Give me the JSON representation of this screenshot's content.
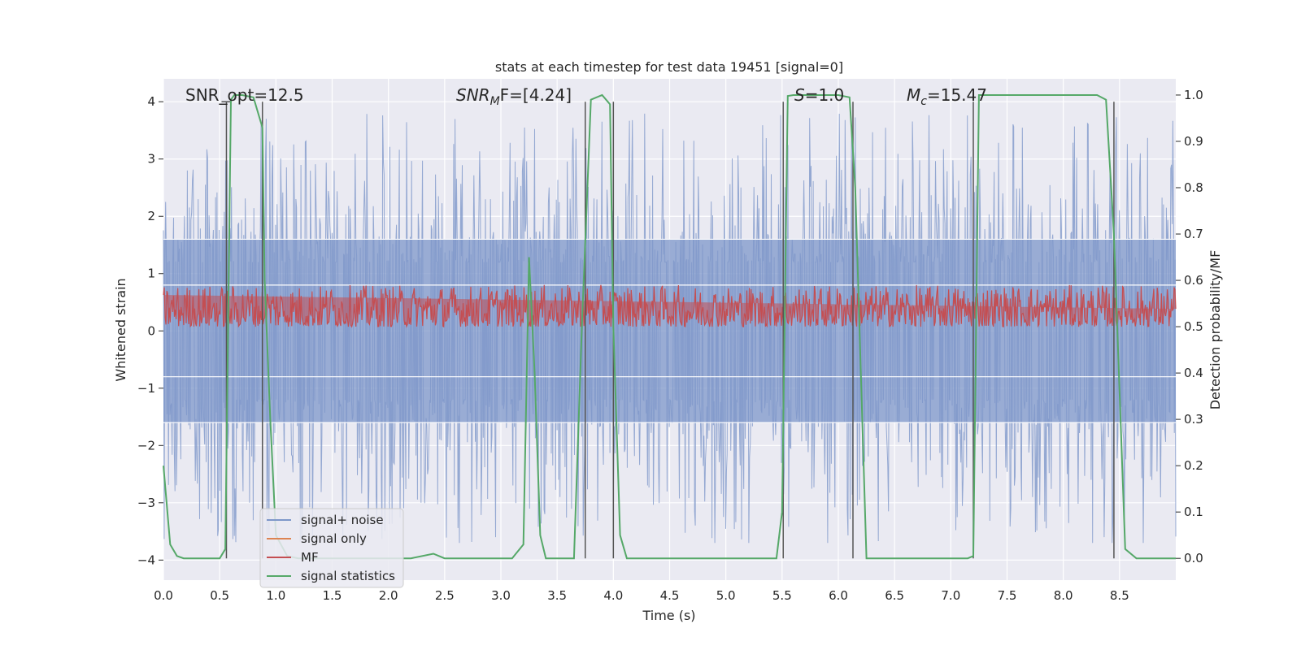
{
  "chart_data": {
    "type": "line",
    "title": "stats at each timestep for test data 19451 [signal=0]",
    "xlabel": "Time (s)",
    "ylabel": "Whitened strain",
    "y2label": "Detection probability/MF",
    "xlim": [
      0.0,
      9.0
    ],
    "ylim": [
      -4.35,
      4.4
    ],
    "y2lim": [
      -0.047,
      1.035
    ],
    "x_ticks": [
      "0.0",
      "0.5",
      "1.0",
      "1.5",
      "2.0",
      "2.5",
      "3.0",
      "3.5",
      "4.0",
      "4.5",
      "5.0",
      "5.5",
      "6.0",
      "6.5",
      "7.0",
      "7.5",
      "8.0",
      "8.5"
    ],
    "y_ticks": [
      "4",
      "3",
      "2",
      "1",
      "0",
      "−1",
      "−2",
      "−3",
      "−4"
    ],
    "y2_ticks": [
      "1.0",
      "0.9",
      "0.8",
      "0.7",
      "0.6",
      "0.5",
      "0.4",
      "0.3",
      "0.2",
      "0.1",
      "0.0"
    ],
    "grid": true,
    "legend_position": "lower-left",
    "annotations": {
      "snr_opt": "SNR_opt=12.5",
      "snr_mf_prefix": "SNR",
      "snr_mf_sub": "M",
      "snr_mf_suffix": "F=[4.24]",
      "s_italic": "S",
      "s_value": "=1.0",
      "mc_italic": "M",
      "mc_sub": "c",
      "mc_value": "=15.47"
    },
    "series": [
      {
        "name": "signal+ noise",
        "color": "#7e97c9",
        "envelope_positive_typical": 1.6,
        "envelope_negative_typical": -1.6,
        "peak_max": 4.0,
        "peak_min": -3.7
      },
      {
        "name": "signal only",
        "color": "#dd8452",
        "values": []
      },
      {
        "name": "MF",
        "color": "#c44e52",
        "axis": "right",
        "baseline": 0.5,
        "range": [
          0.5,
          0.6
        ]
      },
      {
        "name": "signal statistics",
        "color": "#55a868",
        "axis": "right",
        "x": [
          0.0,
          0.06,
          0.12,
          0.18,
          0.5,
          0.55,
          0.6,
          0.63,
          0.7,
          0.8,
          0.88,
          0.9,
          0.95,
          1.0,
          1.1,
          1.2,
          1.5,
          2.0,
          2.2,
          2.4,
          2.5,
          3.0,
          3.1,
          3.2,
          3.25,
          3.3,
          3.35,
          3.4,
          3.5,
          3.65,
          3.72,
          3.8,
          3.9,
          3.97,
          4.0,
          4.06,
          4.12,
          4.2,
          4.5,
          5.0,
          5.45,
          5.5,
          5.55,
          5.6,
          6.0,
          6.1,
          6.15,
          6.25,
          6.5,
          7.15,
          7.2,
          7.25,
          8.0,
          8.3,
          8.38,
          8.45,
          8.55,
          8.65,
          9.0
        ],
        "y": [
          0.2,
          0.03,
          0.005,
          0.0,
          0.0,
          0.02,
          0.99,
          1.0,
          1.0,
          0.995,
          0.93,
          0.6,
          0.3,
          0.05,
          0.005,
          0.0,
          0.0,
          0.0,
          0.0,
          0.01,
          0.0,
          0.0,
          0.0,
          0.03,
          0.65,
          0.4,
          0.05,
          0.0,
          0.0,
          0.0,
          0.5,
          0.99,
          1.0,
          0.98,
          0.5,
          0.05,
          0.0,
          0.0,
          0.0,
          0.0,
          0.0,
          0.1,
          0.998,
          1.0,
          1.0,
          0.995,
          0.8,
          0.0,
          0.0,
          0.0,
          0.005,
          1.0,
          1.0,
          1.0,
          0.99,
          0.7,
          0.02,
          0.0,
          0.0
        ]
      }
    ],
    "vertical_lines_x": [
      0.56,
      0.88,
      3.75,
      4.0,
      5.51,
      6.13,
      7.2,
      8.45
    ]
  }
}
